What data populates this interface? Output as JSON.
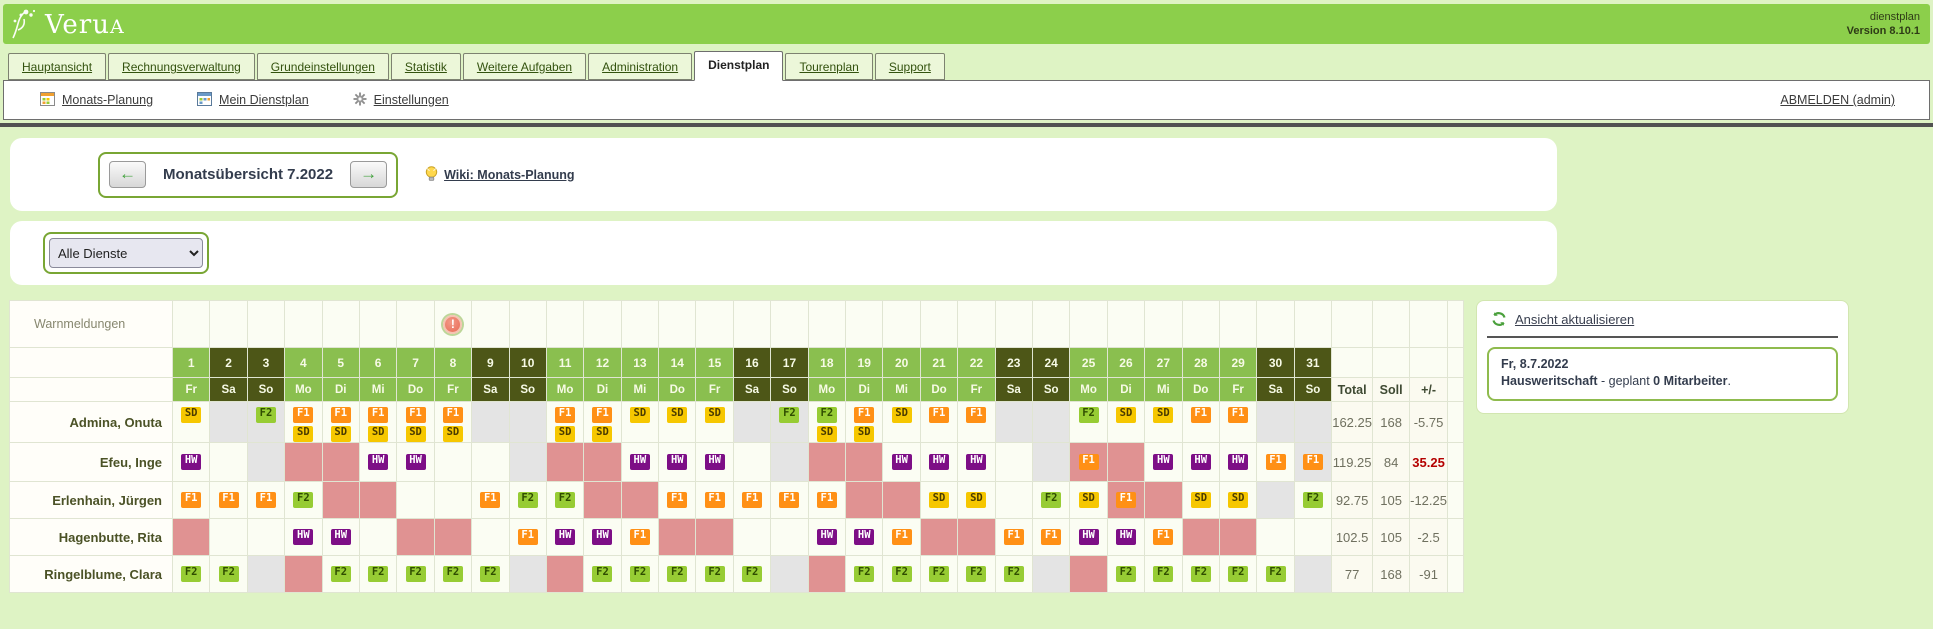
{
  "app": {
    "logo_main": "Veru",
    "logo_suffix": "A",
    "product": "dienstplan",
    "version": "Version 8.10.1"
  },
  "tabs": {
    "items": [
      "Hauptansicht",
      "Rechnungsverwaltung",
      "Grundeinstellungen",
      "Statistik",
      "Weitere Aufgaben",
      "Administration",
      "Dienstplan",
      "Tourenplan",
      "Support"
    ],
    "active": "Dienstplan"
  },
  "subnav": {
    "items": [
      {
        "label": "Monats-Planung",
        "icon": "month-plan-icon"
      },
      {
        "label": "Mein Dienstplan",
        "icon": "my-plan-icon"
      },
      {
        "label": "Einstellungen",
        "icon": "gear-icon"
      }
    ],
    "logout": "ABMELDEN (admin)"
  },
  "month_nav": {
    "prev": "←",
    "next": "→",
    "title": "Monatsübersicht 7.2022",
    "wiki": "Wiki: Monats-Planung"
  },
  "filter": {
    "selected": "Alle Dienste"
  },
  "roster": {
    "warn_label": "Warnmeldungen",
    "warning_day": 8,
    "warning_glyph": "!",
    "days": [
      [
        1,
        "Fr"
      ],
      [
        2,
        "Sa"
      ],
      [
        3,
        "So"
      ],
      [
        4,
        "Mo"
      ],
      [
        5,
        "Di"
      ],
      [
        6,
        "Mi"
      ],
      [
        7,
        "Do"
      ],
      [
        8,
        "Fr"
      ],
      [
        9,
        "Sa"
      ],
      [
        10,
        "So"
      ],
      [
        11,
        "Mo"
      ],
      [
        12,
        "Di"
      ],
      [
        13,
        "Mi"
      ],
      [
        14,
        "Do"
      ],
      [
        15,
        "Fr"
      ],
      [
        16,
        "Sa"
      ],
      [
        17,
        "So"
      ],
      [
        18,
        "Mo"
      ],
      [
        19,
        "Di"
      ],
      [
        20,
        "Mi"
      ],
      [
        21,
        "Do"
      ],
      [
        22,
        "Fr"
      ],
      [
        23,
        "Sa"
      ],
      [
        24,
        "So"
      ],
      [
        25,
        "Mo"
      ],
      [
        26,
        "Di"
      ],
      [
        27,
        "Mi"
      ],
      [
        28,
        "Do"
      ],
      [
        29,
        "Fr"
      ],
      [
        30,
        "Sa"
      ],
      [
        31,
        "So"
      ]
    ],
    "weekend_days": [
      "Sa",
      "So"
    ],
    "totals_headers": [
      "Total",
      "Soll",
      "+/-"
    ],
    "employees": [
      {
        "name": "Admina, Onuta",
        "cells": [
          "SD",
          "|g",
          "F2|g",
          "F1 SD",
          "F1 SD",
          "F1 SD",
          "F1 SD",
          "F1 SD",
          "|g",
          "|g",
          "F1 SD",
          "F1 SD",
          "SD",
          "SD",
          "SD",
          "|g",
          "F2|g",
          "F2 SD",
          "F1 SD",
          "SD",
          "F1",
          "F1",
          "|g",
          "|g",
          "F2",
          "SD",
          "SD",
          "F1",
          "F1",
          "|g",
          "|g"
        ],
        "total": "162.25",
        "soll": "168",
        "diff": "-5.75",
        "diff_alert": false
      },
      {
        "name": "Efeu, Inge",
        "cells": [
          "HW",
          "",
          "|g",
          "|p",
          "|p",
          "HW",
          "HW",
          "",
          "",
          "|g",
          "|p",
          "|p",
          "HW",
          "HW",
          "HW",
          "",
          "|g",
          "|p",
          "|p",
          "HW",
          "HW",
          "HW",
          "",
          "|g",
          "F1|p",
          "|p",
          "HW",
          "HW",
          "HW",
          "F1",
          "F1|g"
        ],
        "total": "119.25",
        "soll": "84",
        "diff": "35.25",
        "diff_alert": true
      },
      {
        "name": "Erlenhain, Jürgen",
        "cells": [
          "F1",
          "F1",
          "F1",
          "F2",
          "|p",
          "|p",
          "",
          "",
          "F1",
          "F2",
          "F2",
          "|p",
          "|p",
          "F1",
          "F1",
          "F1",
          "F1",
          "F1",
          "|p",
          "|p",
          "SD",
          "SD",
          "",
          "F2",
          "SD",
          "F1|p",
          "|p",
          "SD",
          "SD",
          "|g",
          "F2"
        ],
        "total": "92.75",
        "soll": "105",
        "diff": "-12.25",
        "diff_alert": false
      },
      {
        "name": "Hagenbutte, Rita",
        "cells": [
          "|p",
          "",
          "",
          "HW",
          "HW",
          "",
          "|p",
          "|p",
          "",
          "F1",
          "HW",
          "HW",
          "F1",
          "|p",
          "|p",
          "",
          "",
          "HW",
          "HW",
          "F1",
          "|p",
          "|p",
          "F1",
          "F1",
          "HW",
          "HW",
          "F1",
          "|p",
          "|p",
          "",
          ""
        ],
        "total": "102.5",
        "soll": "105",
        "diff": "-2.5",
        "diff_alert": false
      },
      {
        "name": "Ringelblume, Clara",
        "cells": [
          "F2",
          "F2",
          "|g",
          "|p",
          "F2",
          "F2",
          "F2",
          "F2",
          "F2",
          "|g",
          "|p",
          "F2",
          "F2",
          "F2",
          "F2",
          "F2",
          "|g",
          "|p",
          "F2",
          "F2",
          "F2",
          "F2",
          "F2",
          "|g",
          "|p",
          "F2",
          "F2",
          "F2",
          "F2",
          "F2",
          "|g"
        ],
        "total": "77",
        "soll": "168",
        "diff": "-91",
        "diff_alert": false
      }
    ]
  },
  "side_panel": {
    "refresh": "Ansicht aktualisieren",
    "date": "Fr, 8.7.2022",
    "dept": "Hausweritschaft",
    "mid": " - geplant ",
    "count": "0 Mitarbeiter",
    "end": "."
  },
  "colors": {
    "header_green": "#8ccf4b",
    "day_weekday": "#8abf4f",
    "day_weekend": "#4d5617",
    "absence_pink": "#e09292",
    "empty_gray": "#e4e4e4",
    "diff_alert": "#b40000",
    "badges": {
      "SD": [
        "#f6c700",
        "#4a3b00"
      ],
      "F1": [
        "#ff9015",
        "#ffffff"
      ],
      "F2": [
        "#97cc34",
        "#2f4d00"
      ],
      "HW": [
        "#7d0e86",
        "#ffffff"
      ]
    }
  }
}
